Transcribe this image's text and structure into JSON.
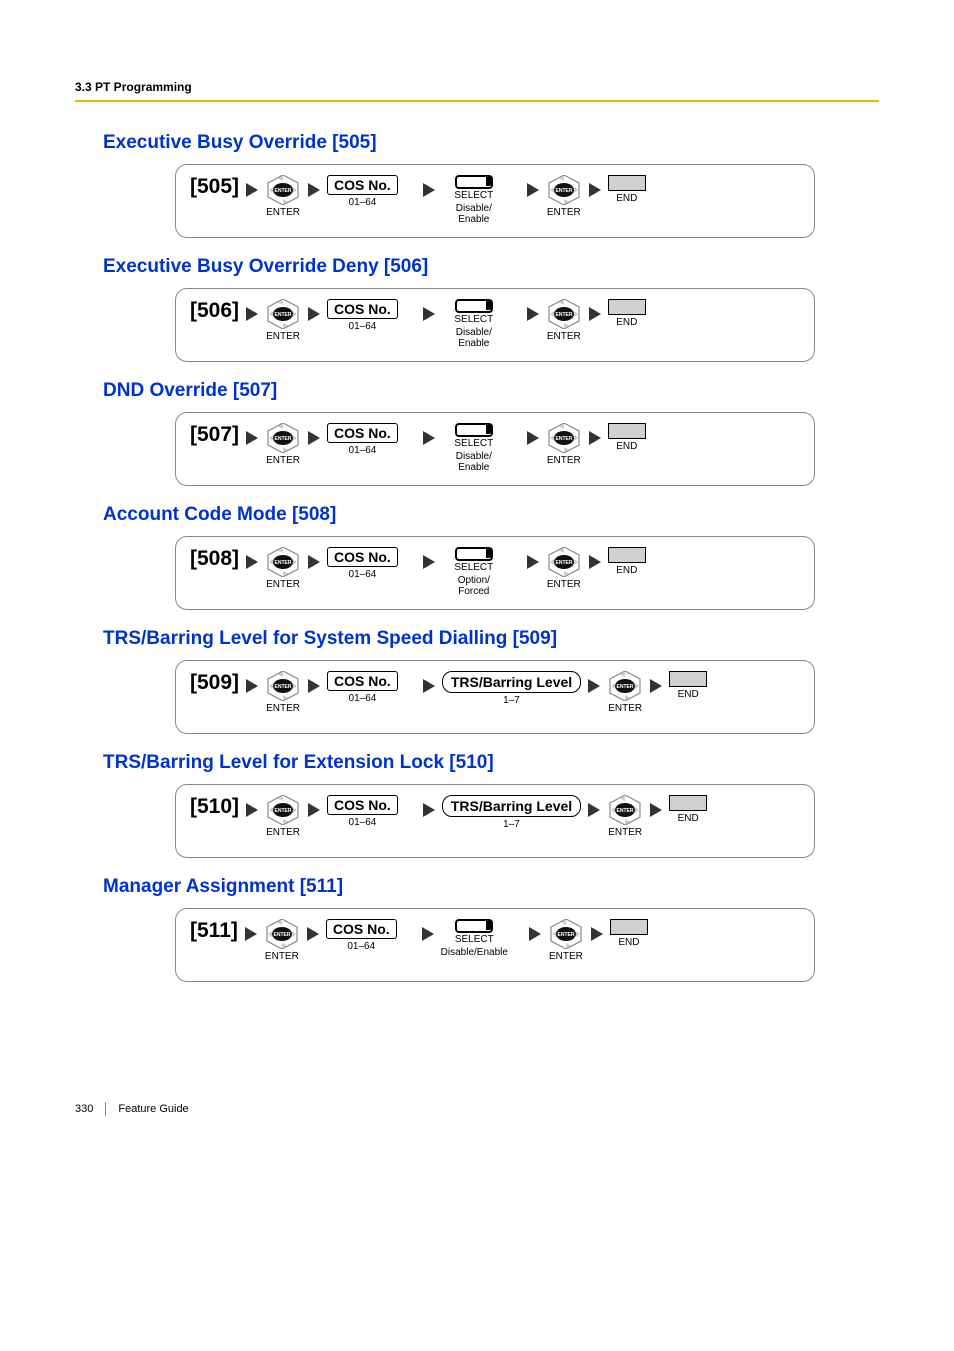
{
  "header": {
    "breadcrumb": "3.3 PT Programming"
  },
  "footer": {
    "page_number": "330",
    "guide_label": "Feature Guide"
  },
  "colors": {
    "title_color": "#0033cc",
    "rule_color": "#e6b800",
    "end_fill": "#d0d0d0"
  },
  "common": {
    "enter_label": "ENTER",
    "select_label": "SELECT",
    "end_label": "END",
    "cos_label": "COS No.",
    "cos_range": "01–64",
    "disable_enable": "Disable/\nEnable",
    "disable_enable_inline": "Disable/Enable",
    "option_forced": "Option/\nForced",
    "trs_label": "TRS/Barring Level",
    "trs_range": "1–7"
  },
  "sections": [
    {
      "title": "Executive Busy Override [505]",
      "code": "[505]",
      "type": "select",
      "select_sub": "disable_enable"
    },
    {
      "title": "Executive Busy Override Deny [506]",
      "code": "[506]",
      "type": "select",
      "select_sub": "disable_enable"
    },
    {
      "title": "DND Override [507]",
      "code": "[507]",
      "type": "select",
      "select_sub": "disable_enable"
    },
    {
      "title": "Account Code Mode [508]",
      "code": "[508]",
      "type": "select",
      "select_sub": "option_forced"
    },
    {
      "title": "TRS/Barring Level for System Speed Dialling [509]",
      "code": "[509]",
      "type": "trs"
    },
    {
      "title": "TRS/Barring Level for Extension Lock [510]",
      "code": "[510]",
      "type": "trs"
    },
    {
      "title": "Manager Assignment [511]",
      "code": "[511]",
      "type": "select",
      "select_sub": "disable_enable_inline"
    }
  ]
}
